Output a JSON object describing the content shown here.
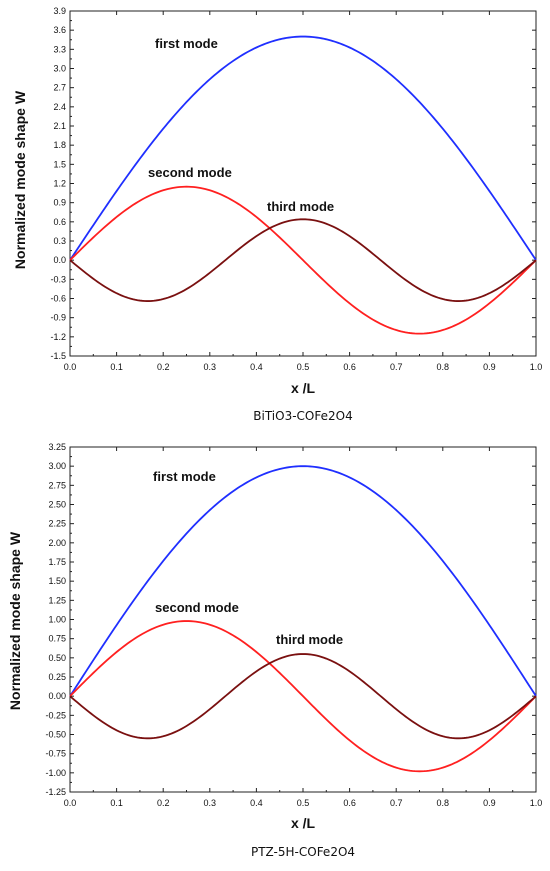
{
  "chart_data": [
    {
      "type": "line",
      "caption": "BiTiO3-COFe2O4",
      "xlabel": "x /L",
      "ylabel": "Normalized mode shape W",
      "xlim": [
        0.0,
        1.0
      ],
      "ylim": [
        -1.5,
        3.9
      ],
      "xticks": [
        "0.0",
        "0.1",
        "0.2",
        "0.3",
        "0.4",
        "0.5",
        "0.6",
        "0.7",
        "0.8",
        "0.9",
        "1.0"
      ],
      "yticks": [
        "-1.5",
        "-1.2",
        "-0.9",
        "-0.6",
        "-0.3",
        "0.0",
        "0.3",
        "0.6",
        "0.9",
        "1.2",
        "1.5",
        "1.8",
        "2.1",
        "2.4",
        "2.7",
        "3.0",
        "3.3",
        "3.6",
        "3.9"
      ],
      "grid": false,
      "series": [
        {
          "name": "first mode",
          "color": "#1f2fff",
          "amplitude": 3.5,
          "periods": 0.5,
          "sign": 1
        },
        {
          "name": "second mode",
          "color": "#ff2020",
          "amplitude": 1.15,
          "periods": 1,
          "sign": 1
        },
        {
          "name": "third mode",
          "color": "#7a1010",
          "amplitude": 0.64,
          "periods": 1.5,
          "sign": -1
        }
      ]
    },
    {
      "type": "line",
      "caption": "PTZ-5H-COFe2O4",
      "xlabel": "x /L",
      "ylabel": "Normalized mode shape W",
      "xlim": [
        0.0,
        1.0
      ],
      "ylim": [
        -1.25,
        3.25
      ],
      "xticks": [
        "0.0",
        "0.1",
        "0.2",
        "0.3",
        "0.4",
        "0.5",
        "0.6",
        "0.7",
        "0.8",
        "0.9",
        "1.0"
      ],
      "yticks": [
        "-1.25",
        "-1.00",
        "-0.75",
        "-0.50",
        "-0.25",
        "0.00",
        "0.25",
        "0.50",
        "0.75",
        "1.00",
        "1.25",
        "1.50",
        "1.75",
        "2.00",
        "2.25",
        "2.50",
        "2.75",
        "3.00",
        "3.25"
      ],
      "grid": false,
      "series": [
        {
          "name": "first mode",
          "color": "#1f2fff",
          "amplitude": 3.0,
          "periods": 0.5,
          "sign": 1
        },
        {
          "name": "second mode",
          "color": "#ff2020",
          "amplitude": 0.98,
          "periods": 1,
          "sign": 1
        },
        {
          "name": "third mode",
          "color": "#7a1010",
          "amplitude": 0.55,
          "periods": 1.5,
          "sign": -1
        }
      ]
    }
  ]
}
